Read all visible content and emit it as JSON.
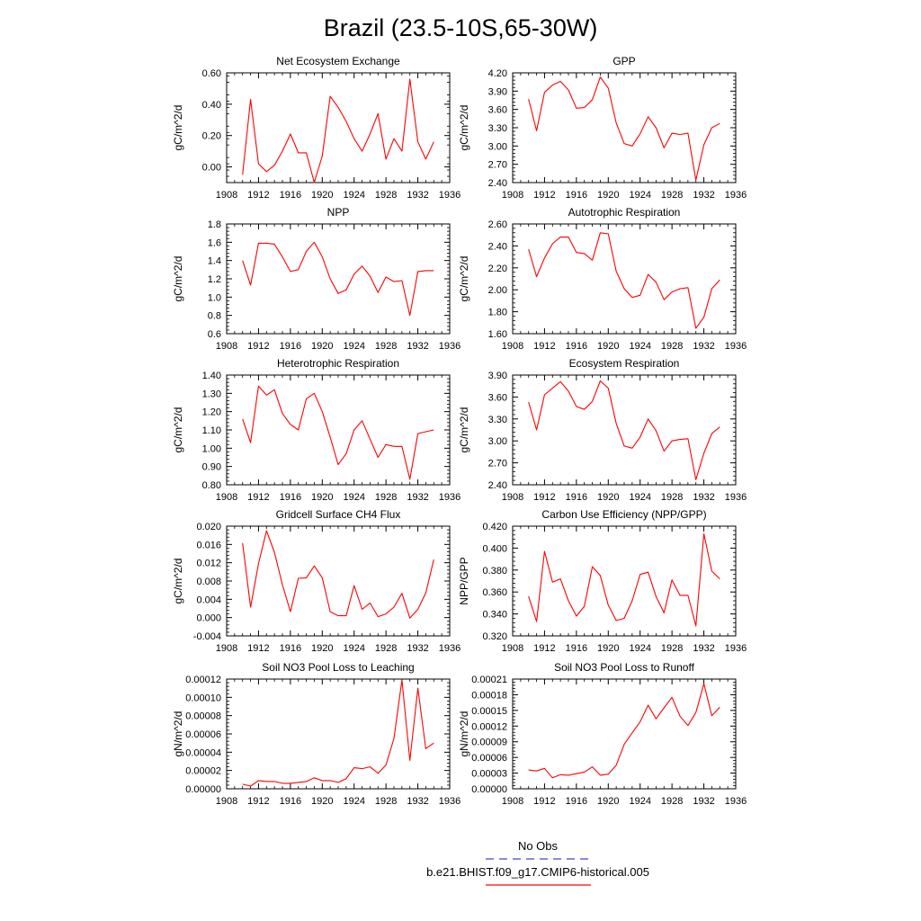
{
  "figure": {
    "title": "Brazil (23.5-10S,65-30W)"
  },
  "legend": {
    "obs_label": "No Obs",
    "obs_color": "#4444cc",
    "model_label": "b.e21.BHIST.f09_g17.CMIP6-historical.005",
    "model_color": "#ff0000"
  },
  "chart_data": [
    {
      "type": "line",
      "title": "Net Ecosystem Exchange",
      "xlabel": "",
      "ylabel": "gC/m^2/d",
      "xlim": [
        1908,
        1936
      ],
      "xticks": [
        1908,
        1912,
        1916,
        1920,
        1924,
        1928,
        1932,
        1936
      ],
      "xtick_labels": [
        "1908",
        "1912",
        "1916",
        "1920",
        "1924",
        "1928",
        "1932",
        "1936"
      ],
      "ylim": [
        -0.1,
        0.6
      ],
      "yticks": [
        0.0,
        0.2,
        0.4,
        0.6
      ],
      "ytick_labels": [
        "0.00",
        "0.20",
        "0.40",
        "0.60"
      ],
      "grid": false,
      "series": [
        {
          "color": "#ff0000",
          "x": [
            1910,
            1911,
            1912,
            1913,
            1914,
            1915,
            1916,
            1917,
            1918,
            1919,
            1920,
            1921,
            1922,
            1923,
            1924,
            1925,
            1926,
            1927,
            1928,
            1929,
            1930,
            1931,
            1932,
            1933,
            1934
          ],
          "values": [
            -0.05,
            0.43,
            0.02,
            -0.03,
            0.01,
            0.1,
            0.21,
            0.09,
            0.09,
            -0.1,
            0.07,
            0.45,
            0.38,
            0.29,
            0.18,
            0.1,
            0.21,
            0.34,
            0.05,
            0.18,
            0.1,
            0.56,
            0.16,
            0.05,
            0.16
          ]
        }
      ]
    },
    {
      "type": "line",
      "title": "GPP",
      "xlabel": "",
      "ylabel": "gC/m^2/d",
      "xlim": [
        1908,
        1936
      ],
      "xticks": [
        1908,
        1912,
        1916,
        1920,
        1924,
        1928,
        1932,
        1936
      ],
      "xtick_labels": [
        "1908",
        "1912",
        "1916",
        "1920",
        "1924",
        "1928",
        "1932",
        "1936"
      ],
      "ylim": [
        2.4,
        4.2
      ],
      "yticks": [
        2.4,
        2.7,
        3.0,
        3.3,
        3.6,
        3.9,
        4.2
      ],
      "ytick_labels": [
        "2.40",
        "2.70",
        "3.00",
        "3.30",
        "3.60",
        "3.90",
        "4.20"
      ],
      "grid": false,
      "series": [
        {
          "color": "#ff0000",
          "x": [
            1910,
            1911,
            1912,
            1913,
            1914,
            1915,
            1916,
            1917,
            1918,
            1919,
            1920,
            1921,
            1922,
            1923,
            1924,
            1925,
            1926,
            1927,
            1928,
            1929,
            1930,
            1931,
            1932,
            1933,
            1934
          ],
          "values": [
            3.77,
            3.25,
            3.88,
            4.0,
            4.06,
            3.92,
            3.62,
            3.63,
            3.76,
            4.13,
            3.95,
            3.38,
            3.04,
            3.0,
            3.2,
            3.48,
            3.3,
            2.97,
            3.21,
            3.19,
            3.21,
            2.44,
            3.02,
            3.3,
            3.37
          ]
        }
      ]
    },
    {
      "type": "line",
      "title": "NPP",
      "xlabel": "",
      "ylabel": "gC/m^2/d",
      "xlim": [
        1908,
        1936
      ],
      "xticks": [
        1908,
        1912,
        1916,
        1920,
        1924,
        1928,
        1932,
        1936
      ],
      "xtick_labels": [
        "1908",
        "1912",
        "1916",
        "1920",
        "1924",
        "1928",
        "1932",
        "1936"
      ],
      "ylim": [
        0.6,
        1.8
      ],
      "yticks": [
        0.6,
        0.8,
        1.0,
        1.2,
        1.4,
        1.6,
        1.8
      ],
      "ytick_labels": [
        "0.6",
        "0.8",
        "1.0",
        "1.2",
        "1.4",
        "1.6",
        "1.8"
      ],
      "grid": false,
      "series": [
        {
          "color": "#ff0000",
          "x": [
            1910,
            1911,
            1912,
            1913,
            1914,
            1915,
            1916,
            1917,
            1918,
            1919,
            1920,
            1921,
            1922,
            1923,
            1924,
            1925,
            1926,
            1927,
            1928,
            1929,
            1930,
            1931,
            1932,
            1933,
            1934
          ],
          "values": [
            1.4,
            1.13,
            1.59,
            1.59,
            1.58,
            1.44,
            1.28,
            1.3,
            1.5,
            1.6,
            1.44,
            1.2,
            1.04,
            1.08,
            1.25,
            1.34,
            1.23,
            1.05,
            1.22,
            1.17,
            1.18,
            0.8,
            1.28,
            1.29,
            1.29
          ]
        }
      ]
    },
    {
      "type": "line",
      "title": "Autotrophic Respiration",
      "xlabel": "",
      "ylabel": "gC/m^2/d",
      "xlim": [
        1908,
        1936
      ],
      "xticks": [
        1908,
        1912,
        1916,
        1920,
        1924,
        1928,
        1932,
        1936
      ],
      "xtick_labels": [
        "1908",
        "1912",
        "1916",
        "1920",
        "1924",
        "1928",
        "1932",
        "1936"
      ],
      "ylim": [
        1.6,
        2.6
      ],
      "yticks": [
        1.6,
        1.8,
        2.0,
        2.2,
        2.4,
        2.6
      ],
      "ytick_labels": [
        "1.60",
        "1.80",
        "2.00",
        "2.20",
        "2.40",
        "2.60"
      ],
      "grid": false,
      "series": [
        {
          "color": "#ff0000",
          "x": [
            1910,
            1911,
            1912,
            1913,
            1914,
            1915,
            1916,
            1917,
            1918,
            1919,
            1920,
            1921,
            1922,
            1923,
            1924,
            1925,
            1926,
            1927,
            1928,
            1929,
            1930,
            1931,
            1932,
            1933,
            1934
          ],
          "values": [
            2.37,
            2.12,
            2.29,
            2.42,
            2.48,
            2.48,
            2.34,
            2.33,
            2.27,
            2.52,
            2.51,
            2.17,
            2.01,
            1.93,
            1.95,
            2.14,
            2.07,
            1.91,
            1.98,
            2.01,
            2.02,
            1.65,
            1.75,
            2.01,
            2.09
          ]
        }
      ]
    },
    {
      "type": "line",
      "title": "Heterotrophic Respiration",
      "xlabel": "",
      "ylabel": "gC/m^2/d",
      "xlim": [
        1908,
        1936
      ],
      "xticks": [
        1908,
        1912,
        1916,
        1920,
        1924,
        1928,
        1932,
        1936
      ],
      "xtick_labels": [
        "1908",
        "1912",
        "1916",
        "1920",
        "1924",
        "1928",
        "1932",
        "1936"
      ],
      "ylim": [
        0.8,
        1.4
      ],
      "yticks": [
        0.8,
        0.9,
        1.0,
        1.1,
        1.2,
        1.3,
        1.4
      ],
      "ytick_labels": [
        "0.80",
        "0.90",
        "1.00",
        "1.10",
        "1.20",
        "1.30",
        "1.40"
      ],
      "grid": false,
      "series": [
        {
          "color": "#ff0000",
          "x": [
            1910,
            1911,
            1912,
            1913,
            1914,
            1915,
            1916,
            1917,
            1918,
            1919,
            1920,
            1921,
            1922,
            1923,
            1924,
            1925,
            1926,
            1927,
            1928,
            1929,
            1930,
            1931,
            1932,
            1933,
            1934
          ],
          "values": [
            1.16,
            1.03,
            1.34,
            1.29,
            1.32,
            1.19,
            1.13,
            1.1,
            1.27,
            1.3,
            1.2,
            1.06,
            0.91,
            0.97,
            1.1,
            1.15,
            1.05,
            0.95,
            1.02,
            1.01,
            1.01,
            0.83,
            1.08,
            1.09,
            1.1
          ]
        }
      ]
    },
    {
      "type": "line",
      "title": "Ecosystem Respiration",
      "xlabel": "",
      "ylabel": "gC/m^2/d",
      "xlim": [
        1908,
        1936
      ],
      "xticks": [
        1908,
        1912,
        1916,
        1920,
        1924,
        1928,
        1932,
        1936
      ],
      "xtick_labels": [
        "1908",
        "1912",
        "1916",
        "1920",
        "1924",
        "1928",
        "1932",
        "1936"
      ],
      "ylim": [
        2.4,
        3.9
      ],
      "yticks": [
        2.4,
        2.7,
        3.0,
        3.3,
        3.6,
        3.9
      ],
      "ytick_labels": [
        "2.40",
        "2.70",
        "3.00",
        "3.30",
        "3.60",
        "3.90"
      ],
      "grid": false,
      "series": [
        {
          "color": "#ff0000",
          "x": [
            1910,
            1911,
            1912,
            1913,
            1914,
            1915,
            1916,
            1917,
            1918,
            1919,
            1920,
            1921,
            1922,
            1923,
            1924,
            1925,
            1926,
            1927,
            1928,
            1929,
            1930,
            1931,
            1932,
            1933,
            1934
          ],
          "values": [
            3.53,
            3.15,
            3.63,
            3.72,
            3.81,
            3.68,
            3.47,
            3.43,
            3.54,
            3.82,
            3.72,
            3.24,
            2.93,
            2.9,
            3.05,
            3.3,
            3.14,
            2.86,
            3.0,
            3.02,
            3.03,
            2.47,
            2.83,
            3.1,
            3.19
          ]
        }
      ]
    },
    {
      "type": "line",
      "title": "Gridcell Surface CH4 Flux",
      "xlabel": "",
      "ylabel": "gC/m^2/d",
      "xlim": [
        1908,
        1936
      ],
      "xticks": [
        1908,
        1912,
        1916,
        1920,
        1924,
        1928,
        1932,
        1936
      ],
      "xtick_labels": [
        "1908",
        "1912",
        "1916",
        "1920",
        "1924",
        "1928",
        "1932",
        "1936"
      ],
      "ylim": [
        -0.004,
        0.02
      ],
      "yticks": [
        -0.004,
        0.0,
        0.004,
        0.008,
        0.012,
        0.016,
        0.02
      ],
      "ytick_labels": [
        "-0.004",
        "0.000",
        "0.004",
        "0.008",
        "0.012",
        "0.016",
        "0.020"
      ],
      "grid": false,
      "series": [
        {
          "color": "#ff0000",
          "x": [
            1910,
            1911,
            1912,
            1913,
            1914,
            1915,
            1916,
            1917,
            1918,
            1919,
            1920,
            1921,
            1922,
            1923,
            1924,
            1925,
            1926,
            1927,
            1928,
            1929,
            1930,
            1931,
            1932,
            1933,
            1934
          ],
          "values": [
            0.0163,
            0.0023,
            0.0118,
            0.019,
            0.0143,
            0.0072,
            0.0013,
            0.0086,
            0.0087,
            0.0113,
            0.0087,
            0.0013,
            0.0004,
            0.0004,
            0.007,
            0.0018,
            0.0032,
            0.0002,
            0.0008,
            0.0023,
            0.0053,
            -0.0001,
            0.0018,
            0.0054,
            0.0127
          ]
        }
      ]
    },
    {
      "type": "line",
      "title": "Carbon Use Efficiency (NPP/GPP)",
      "xlabel": "",
      "ylabel": "NPP/GPP",
      "xlim": [
        1908,
        1936
      ],
      "xticks": [
        1908,
        1912,
        1916,
        1920,
        1924,
        1928,
        1932,
        1936
      ],
      "xtick_labels": [
        "1908",
        "1912",
        "1916",
        "1920",
        "1924",
        "1928",
        "1932",
        "1936"
      ],
      "ylim": [
        0.32,
        0.42
      ],
      "yticks": [
        0.32,
        0.34,
        0.36,
        0.38,
        0.4,
        0.42
      ],
      "ytick_labels": [
        "0.320",
        "0.340",
        "0.360",
        "0.380",
        "0.400",
        "0.420"
      ],
      "grid": false,
      "series": [
        {
          "color": "#ff0000",
          "x": [
            1910,
            1911,
            1912,
            1913,
            1914,
            1915,
            1916,
            1917,
            1918,
            1919,
            1920,
            1921,
            1922,
            1923,
            1924,
            1925,
            1926,
            1927,
            1928,
            1929,
            1930,
            1931,
            1932,
            1933,
            1934
          ],
          "values": [
            0.356,
            0.333,
            0.397,
            0.369,
            0.372,
            0.352,
            0.338,
            0.347,
            0.383,
            0.375,
            0.348,
            0.334,
            0.336,
            0.352,
            0.376,
            0.378,
            0.356,
            0.341,
            0.371,
            0.357,
            0.357,
            0.329,
            0.413,
            0.379,
            0.372
          ]
        }
      ]
    },
    {
      "type": "line",
      "title": "Soil NO3 Pool Loss to Leaching",
      "xlabel": "",
      "ylabel": "gN/m^2/d",
      "xlim": [
        1908,
        1936
      ],
      "xticks": [
        1908,
        1912,
        1916,
        1920,
        1924,
        1928,
        1932,
        1936
      ],
      "xtick_labels": [
        "1908",
        "1912",
        "1916",
        "1920",
        "1924",
        "1928",
        "1932",
        "1936"
      ],
      "ylim": [
        0,
        0.00012
      ],
      "yticks": [
        0,
        2e-05,
        4e-05,
        6e-05,
        8e-05,
        0.0001,
        0.00012
      ],
      "ytick_labels": [
        "0.00000",
        "0.00002",
        "0.00004",
        "0.00006",
        "0.00008",
        "0.00010",
        "0.00012"
      ],
      "grid": false,
      "series": [
        {
          "color": "#ff0000",
          "x": [
            1910,
            1911,
            1912,
            1913,
            1914,
            1915,
            1916,
            1917,
            1918,
            1919,
            1920,
            1921,
            1922,
            1923,
            1924,
            1925,
            1926,
            1927,
            1928,
            1929,
            1930,
            1931,
            1932,
            1933,
            1934
          ],
          "values": [
            5e-06,
            3e-06,
            9e-06,
            8e-06,
            8e-06,
            6e-06,
            6e-06,
            7e-06,
            8e-06,
            1.2e-05,
            9e-06,
            9e-06,
            7e-06,
            1.1e-05,
            2.3e-05,
            2.2e-05,
            2.4e-05,
            1.7e-05,
            2.6e-05,
            5.5e-05,
            0.000119,
            3.1e-05,
            0.00011,
            4.4e-05,
            5e-05
          ]
        }
      ]
    },
    {
      "type": "line",
      "title": "Soil NO3 Pool Loss to Runoff",
      "xlabel": "",
      "ylabel": "gN/m^2/d",
      "xlim": [
        1908,
        1936
      ],
      "xticks": [
        1908,
        1912,
        1916,
        1920,
        1924,
        1928,
        1932,
        1936
      ],
      "xtick_labels": [
        "1908",
        "1912",
        "1916",
        "1920",
        "1924",
        "1928",
        "1932",
        "1936"
      ],
      "ylim": [
        0,
        0.00021
      ],
      "yticks": [
        0,
        3e-05,
        6e-05,
        9e-05,
        0.00012,
        0.00015,
        0.00018,
        0.00021
      ],
      "ytick_labels": [
        "0.00000",
        "0.00003",
        "0.00006",
        "0.00009",
        "0.00012",
        "0.00015",
        "0.00018",
        "0.00021"
      ],
      "grid": false,
      "series": [
        {
          "color": "#ff0000",
          "x": [
            1910,
            1911,
            1912,
            1913,
            1914,
            1915,
            1916,
            1917,
            1918,
            1919,
            1920,
            1921,
            1922,
            1923,
            1924,
            1925,
            1926,
            1927,
            1928,
            1929,
            1930,
            1931,
            1932,
            1933,
            1934
          ],
          "values": [
            3.6e-05,
            3.4e-05,
            3.9e-05,
            2.1e-05,
            2.7e-05,
            2.6e-05,
            2.9e-05,
            3.2e-05,
            4.2e-05,
            2.6e-05,
            2.8e-05,
            4.5e-05,
            8.5e-05,
            0.000107,
            0.000128,
            0.00016,
            0.000134,
            0.000155,
            0.000175,
            0.000139,
            0.000121,
            0.000146,
            0.000201,
            0.00014,
            0.000156
          ]
        }
      ]
    }
  ]
}
